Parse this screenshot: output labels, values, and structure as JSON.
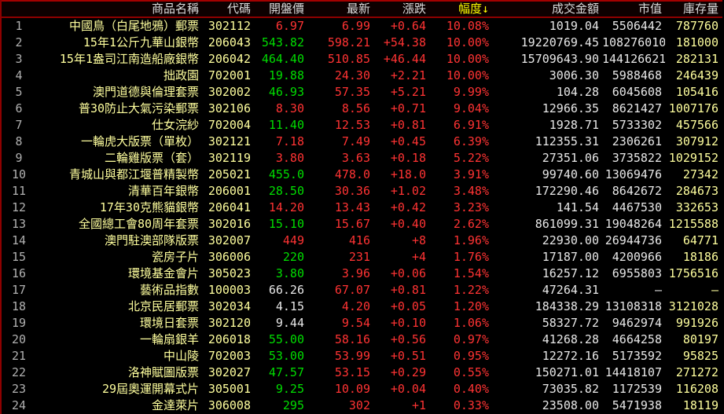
{
  "colors": {
    "up_red": "#ff3333",
    "down_green": "#00dd00",
    "neutral_white": "#e8e8e8",
    "name_yellow": "#ffff9e",
    "sorted_header_yellow": "#ffff00",
    "row_number_gray": "#b0b0b0",
    "border_red": "#a40000",
    "background": "#000000"
  },
  "table": {
    "sort_arrow": "↓",
    "sorted_column": "幅度",
    "columns": {
      "name": "商品名稱",
      "code": "代碼",
      "open": "開盤價",
      "latest": "最新",
      "change": "漲跌",
      "pct": "幅度",
      "amount": "成交金額",
      "mktcap": "市值",
      "inventory": "庫存量"
    },
    "rows": [
      {
        "num": "1",
        "name": "中國鳥（白尾地鴉）郵票",
        "code": "302112",
        "open": "6.97",
        "open_color": "red",
        "latest": "6.99",
        "change": "+0.64",
        "pct": "10.08%",
        "amount": "1019.04",
        "mktcap": "5506442",
        "inventory": "787760"
      },
      {
        "num": "2",
        "name": "15年1公斤九華山銀幣",
        "code": "206043",
        "open": "543.82",
        "open_color": "green",
        "latest": "598.21",
        "change": "+54.38",
        "pct": "10.00%",
        "amount": "19220769.45",
        "mktcap": "108276010",
        "inventory": "181000"
      },
      {
        "num": "3",
        "name": "15年1盎司江南造船廠銀幣",
        "code": "206042",
        "open": "464.40",
        "open_color": "green",
        "latest": "510.85",
        "change": "+46.44",
        "pct": "10.00%",
        "amount": "15709643.90",
        "mktcap": "144126621",
        "inventory": "282131"
      },
      {
        "num": "4",
        "name": "拙政園",
        "code": "702001",
        "open": "19.88",
        "open_color": "green",
        "latest": "24.30",
        "change": "+2.21",
        "pct": "10.00%",
        "amount": "3006.30",
        "mktcap": "5988468",
        "inventory": "246439"
      },
      {
        "num": "5",
        "name": "澳門道德與倫理套票",
        "code": "302002",
        "open": "46.93",
        "open_color": "green",
        "latest": "57.35",
        "change": "+5.21",
        "pct": "9.99%",
        "amount": "104.28",
        "mktcap": "6045608",
        "inventory": "105416"
      },
      {
        "num": "6",
        "name": "普30防止大氣污染郵票",
        "code": "302106",
        "open": "8.30",
        "open_color": "red",
        "latest": "8.56",
        "change": "+0.71",
        "pct": "9.04%",
        "amount": "12966.35",
        "mktcap": "8621427",
        "inventory": "1007176"
      },
      {
        "num": "7",
        "name": "仕女浣紗",
        "code": "702004",
        "open": "11.40",
        "open_color": "green",
        "latest": "12.53",
        "change": "+0.81",
        "pct": "6.91%",
        "amount": "1928.71",
        "mktcap": "5733302",
        "inventory": "457566"
      },
      {
        "num": "8",
        "name": "一輪虎大版票（單枚）",
        "code": "302121",
        "open": "7.18",
        "open_color": "red",
        "latest": "7.49",
        "change": "+0.45",
        "pct": "6.39%",
        "amount": "112355.31",
        "mktcap": "2306261",
        "inventory": "307912"
      },
      {
        "num": "9",
        "name": "二輪雞版票（套）",
        "code": "302119",
        "open": "3.80",
        "open_color": "red",
        "latest": "3.63",
        "change": "+0.18",
        "pct": "5.22%",
        "amount": "27351.06",
        "mktcap": "3735822",
        "inventory": "1029152"
      },
      {
        "num": "10",
        "name": "青城山與都江堰普精製幣",
        "code": "205021",
        "open": "455.0",
        "open_color": "green",
        "latest": "478.0",
        "change": "+18.0",
        "pct": "3.91%",
        "amount": "99740.60",
        "mktcap": "13069476",
        "inventory": "27342"
      },
      {
        "num": "11",
        "name": "清華百年銀幣",
        "code": "206001",
        "open": "28.50",
        "open_color": "green",
        "latest": "30.36",
        "change": "+1.02",
        "pct": "3.48%",
        "amount": "172290.46",
        "mktcap": "8642672",
        "inventory": "284673"
      },
      {
        "num": "12",
        "name": "17年30克熊貓銀幣",
        "code": "206041",
        "open": "14.20",
        "open_color": "red",
        "latest": "13.43",
        "change": "+0.42",
        "pct": "3.23%",
        "amount": "141.54",
        "mktcap": "4467530",
        "inventory": "332653"
      },
      {
        "num": "13",
        "name": "全國總工會80周年套票",
        "code": "302016",
        "open": "15.10",
        "open_color": "green",
        "latest": "15.67",
        "change": "+0.40",
        "pct": "2.62%",
        "amount": "861099.31",
        "mktcap": "19048264",
        "inventory": "1215588"
      },
      {
        "num": "14",
        "name": "澳門駐澳部隊版票",
        "code": "302007",
        "open": "449",
        "open_color": "red",
        "latest": "416",
        "change": "+8",
        "pct": "1.96%",
        "amount": "22930.00",
        "mktcap": "26944736",
        "inventory": "64771"
      },
      {
        "num": "15",
        "name": "瓷房子片",
        "code": "306006",
        "open": "220",
        "open_color": "green",
        "latest": "231",
        "change": "+4",
        "pct": "1.76%",
        "amount": "17187.00",
        "mktcap": "4200966",
        "inventory": "18186"
      },
      {
        "num": "16",
        "name": "環境基金會片",
        "code": "305023",
        "open": "3.80",
        "open_color": "green",
        "latest": "3.96",
        "change": "+0.06",
        "pct": "1.54%",
        "amount": "16257.12",
        "mktcap": "6955803",
        "inventory": "1756516"
      },
      {
        "num": "17",
        "name": "藝術品指數",
        "code": "100003",
        "open": "66.26",
        "open_color": "white",
        "latest": "67.07",
        "change": "+0.81",
        "pct": "1.22%",
        "amount": "47264.31",
        "mktcap": "—",
        "inventory": "—"
      },
      {
        "num": "18",
        "name": "北京民居郵票",
        "code": "302034",
        "open": "4.15",
        "open_color": "white",
        "latest": "4.20",
        "change": "+0.05",
        "pct": "1.20%",
        "amount": "184338.29",
        "mktcap": "13108318",
        "inventory": "3121028"
      },
      {
        "num": "19",
        "name": "環境日套票",
        "code": "302120",
        "open": "9.44",
        "open_color": "white",
        "latest": "9.54",
        "change": "+0.10",
        "pct": "1.06%",
        "amount": "58327.72",
        "mktcap": "9462974",
        "inventory": "991926"
      },
      {
        "num": "20",
        "name": "一輪扇銀羊",
        "code": "206018",
        "open": "55.00",
        "open_color": "green",
        "latest": "58.16",
        "change": "+0.56",
        "pct": "0.97%",
        "amount": "41268.28",
        "mktcap": "4664258",
        "inventory": "80197"
      },
      {
        "num": "21",
        "name": "中山陵",
        "code": "702003",
        "open": "53.00",
        "open_color": "green",
        "latest": "53.99",
        "change": "+0.51",
        "pct": "0.95%",
        "amount": "12272.16",
        "mktcap": "5173592",
        "inventory": "95825"
      },
      {
        "num": "22",
        "name": "洛神賦圖版票",
        "code": "302027",
        "open": "47.57",
        "open_color": "green",
        "latest": "53.15",
        "change": "+0.29",
        "pct": "0.55%",
        "amount": "150271.01",
        "mktcap": "14418107",
        "inventory": "271272"
      },
      {
        "num": "23",
        "name": "29屆奧運開幕式片",
        "code": "305001",
        "open": "9.25",
        "open_color": "green",
        "latest": "10.09",
        "change": "+0.04",
        "pct": "0.40%",
        "amount": "73035.82",
        "mktcap": "1172539",
        "inventory": "116208"
      },
      {
        "num": "24",
        "name": "金達萊片",
        "code": "306008",
        "open": "295",
        "open_color": "green",
        "latest": "302",
        "change": "+1",
        "pct": "0.33%",
        "amount": "23508.00",
        "mktcap": "5471938",
        "inventory": "18119"
      }
    ]
  }
}
